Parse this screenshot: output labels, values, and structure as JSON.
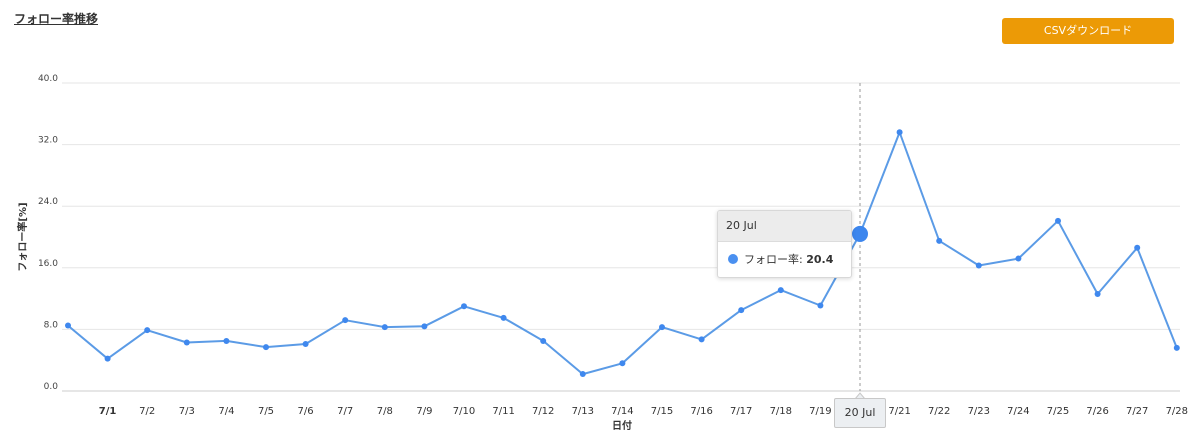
{
  "page": {
    "title": "フォロー率推移",
    "csv_button_label": "CSVダウンロード"
  },
  "chart_data": {
    "type": "line",
    "categories": [
      "",
      "7/1",
      "7/2",
      "7/3",
      "7/4",
      "7/5",
      "7/6",
      "7/7",
      "7/8",
      "7/9",
      "7/10",
      "7/11",
      "7/12",
      "7/13",
      "7/14",
      "7/15",
      "7/16",
      "7/17",
      "7/18",
      "7/19",
      "20 Jul",
      "7/21",
      "7/22",
      "7/23",
      "7/24",
      "7/25",
      "7/26",
      "7/27",
      "7/28"
    ],
    "series": [
      {
        "name": "フォロー率",
        "color": "#5b9be6",
        "values": [
          8.5,
          4.2,
          7.9,
          6.3,
          6.5,
          5.7,
          6.1,
          9.2,
          8.3,
          8.4,
          11.0,
          9.5,
          6.5,
          2.2,
          3.6,
          8.3,
          6.7,
          10.5,
          13.1,
          11.1,
          20.4,
          33.6,
          19.5,
          16.3,
          17.2,
          22.1,
          12.6,
          18.6,
          5.6
        ]
      }
    ],
    "xlabel": "日付",
    "ylabel": "フォロー率[%]",
    "ylim": [
      0,
      40
    ],
    "yticks": [
      "0.0",
      "8.0",
      "16.0",
      "24.0",
      "32.0",
      "40.0"
    ],
    "grid": true,
    "highlighted": {
      "index": 20,
      "tooltip_title": "20 Jul",
      "tooltip_series_label": "フォロー率:",
      "tooltip_value": "20.4",
      "x_label": "20 Jul"
    }
  }
}
